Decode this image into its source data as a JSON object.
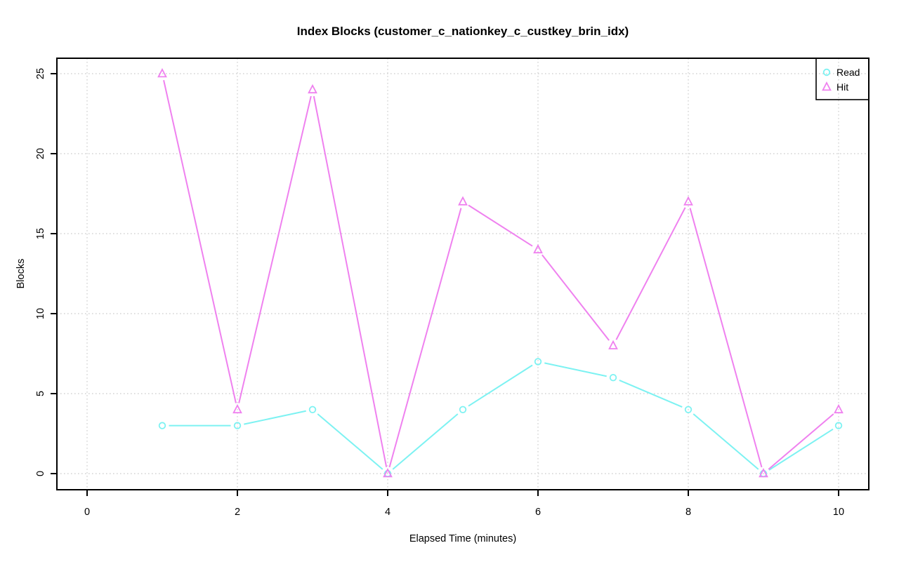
{
  "chart_data": {
    "type": "line",
    "title": "Index Blocks (customer_c_nationkey_c_custkey_brin_idx)",
    "xlabel": "Elapsed Time (minutes)",
    "ylabel": "Blocks",
    "x": [
      1,
      2,
      3,
      4,
      5,
      6,
      7,
      8,
      9,
      10
    ],
    "series": [
      {
        "name": "Read",
        "marker": "circle",
        "color": "#7DF2F2",
        "values": [
          3,
          3,
          4,
          0,
          4,
          7,
          6,
          4,
          0,
          3
        ]
      },
      {
        "name": "Hit",
        "marker": "triangle",
        "color": "#EF81EF",
        "values": [
          25,
          4,
          24,
          0,
          17,
          14,
          8,
          17,
          0,
          4
        ]
      }
    ],
    "xticks": [
      0,
      2,
      4,
      6,
      8,
      10
    ],
    "yticks": [
      0,
      5,
      10,
      15,
      20,
      25
    ],
    "xlim": [
      0,
      10
    ],
    "ylim": [
      0,
      25
    ],
    "grid": true,
    "grid_style": "dotted",
    "legend_position": "top-right",
    "legend_items": [
      "Read",
      "Hit"
    ],
    "colors": {
      "grid": "#D4D4D4",
      "axis": "#000000",
      "background": "#FFFFFF"
    }
  }
}
